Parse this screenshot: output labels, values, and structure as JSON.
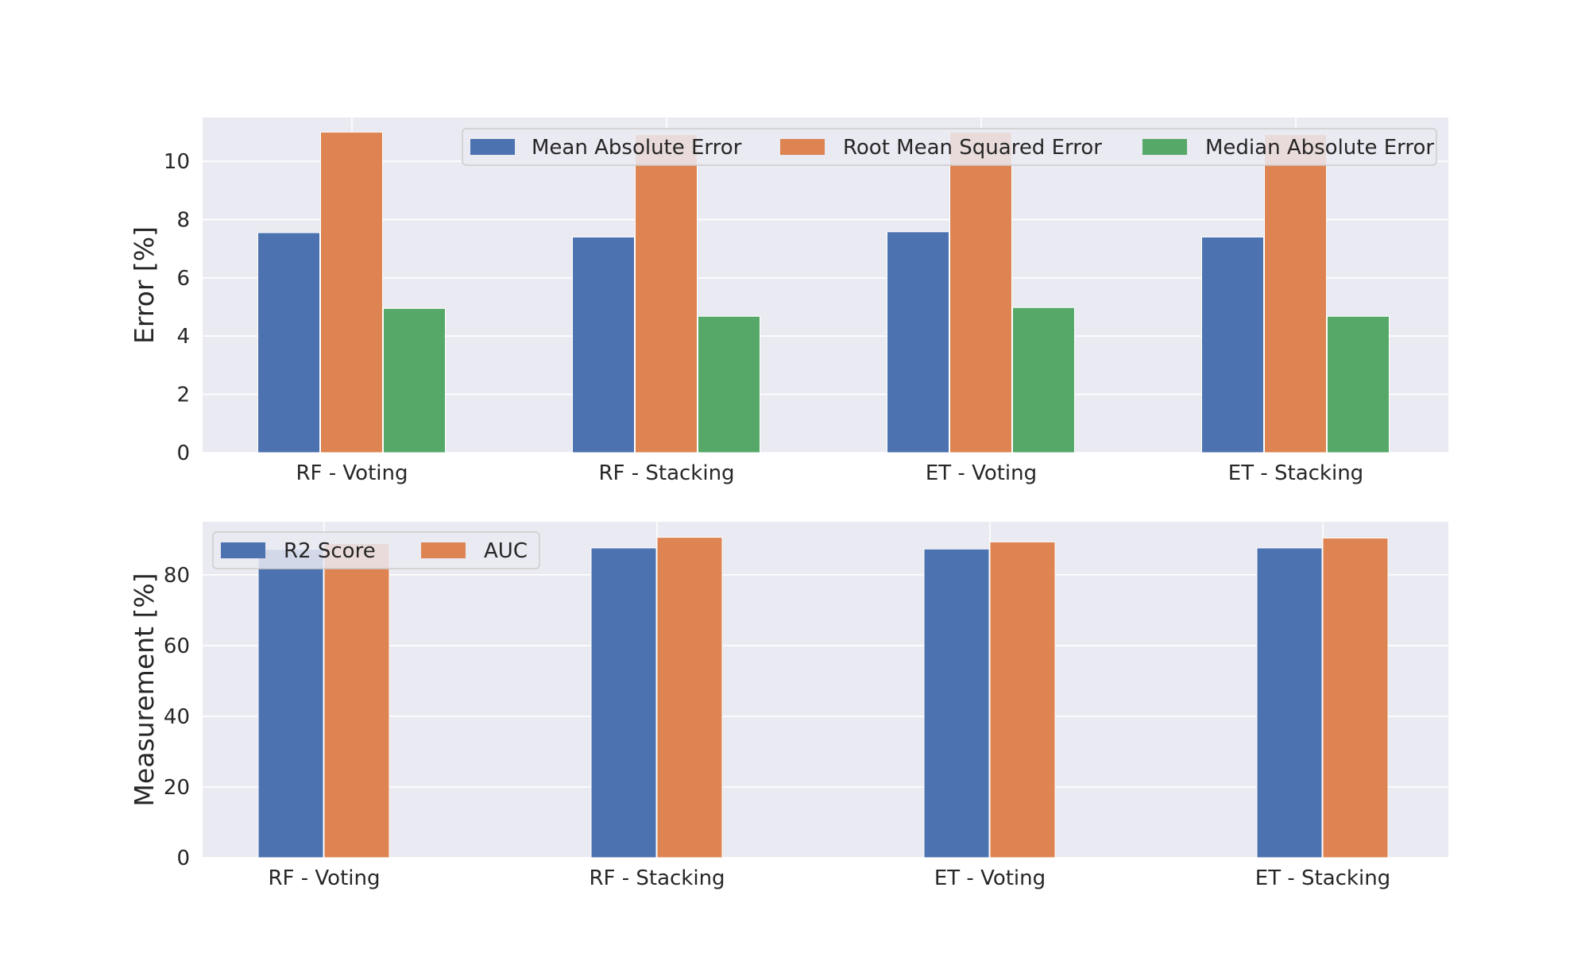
{
  "chart_data": [
    {
      "type": "bar",
      "categories": [
        "RF - Voting",
        "RF - Stacking",
        "ET - Voting",
        "ET - Stacking"
      ],
      "ylabel": "Error [%]",
      "xlabel": "",
      "ylim": [
        0,
        11.5
      ],
      "yticks": [
        0,
        2,
        4,
        6,
        8,
        10
      ],
      "grid": true,
      "legend": {
        "placement": "top-right",
        "columns": 3
      },
      "series": [
        {
          "name": "Mean Absolute Error",
          "color": "#4c72b0",
          "values": [
            7.55,
            7.4,
            7.58,
            7.4
          ]
        },
        {
          "name": "Root Mean Squared Error",
          "color": "#dd8452",
          "values": [
            11.0,
            10.92,
            11.0,
            10.92
          ]
        },
        {
          "name": "Median Absolute Error",
          "color": "#55a868",
          "values": [
            4.95,
            4.68,
            4.98,
            4.68
          ]
        }
      ]
    },
    {
      "type": "bar",
      "categories": [
        "RF - Voting",
        "RF - Stacking",
        "ET - Voting",
        "ET - Stacking"
      ],
      "ylabel": "Measurement [%]",
      "xlabel": "",
      "ylim": [
        0,
        95
      ],
      "yticks": [
        0,
        20,
        40,
        60,
        80
      ],
      "grid": true,
      "legend": {
        "placement": "top-left",
        "columns": 2
      },
      "series": [
        {
          "name": "R2 Score",
          "color": "#4c72b0",
          "values": [
            87.2,
            87.6,
            87.3,
            87.6
          ]
        },
        {
          "name": "AUC",
          "color": "#dd8452",
          "values": [
            88.9,
            90.6,
            89.3,
            90.4
          ]
        }
      ]
    }
  ]
}
